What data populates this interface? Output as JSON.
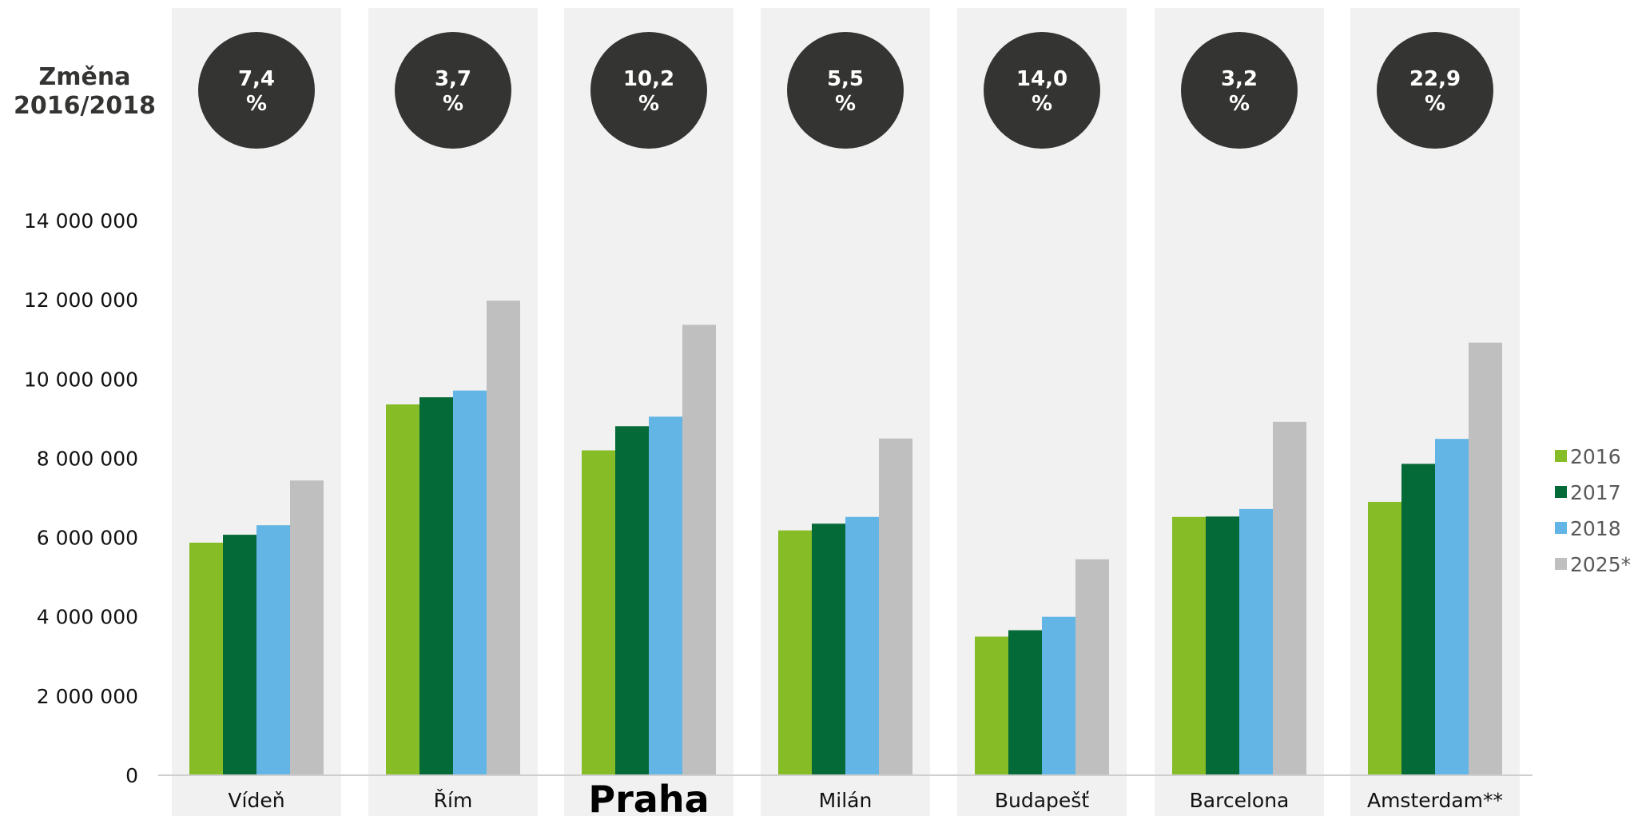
{
  "chart_data": {
    "type": "bar",
    "side_title": [
      "Změna",
      "2016/2018"
    ],
    "categories": [
      "Vídeň",
      "Řím",
      "Praha",
      "Milán",
      "Budapešť",
      "Barcelona",
      "Amsterdam**"
    ],
    "highlight_category": "Praha",
    "change_labels": [
      [
        "7,4",
        "%"
      ],
      [
        "3,7",
        "%"
      ],
      [
        "10,2",
        "%"
      ],
      [
        "5,5",
        "%"
      ],
      [
        "14,0",
        "%"
      ],
      [
        "3,2",
        "%"
      ],
      [
        "22,9",
        "%"
      ]
    ],
    "series": [
      {
        "name": "2016",
        "color": "#86bc25",
        "values": [
          5870000,
          9360000,
          8200000,
          6180000,
          3500000,
          6520000,
          6900000
        ]
      },
      {
        "name": "2017",
        "color": "#046a38",
        "values": [
          6070000,
          9540000,
          8810000,
          6350000,
          3660000,
          6530000,
          7860000
        ]
      },
      {
        "name": "2018",
        "color": "#62b5e5",
        "values": [
          6310000,
          9710000,
          9050000,
          6520000,
          4000000,
          6720000,
          8490000
        ]
      },
      {
        "name": "2025*",
        "color": "#bfbfbf",
        "values": [
          7440000,
          11980000,
          11370000,
          8500000,
          5450000,
          8920000,
          10920000
        ]
      }
    ],
    "ylim": [
      0,
      14000000
    ],
    "yticks": [
      0,
      2000000,
      4000000,
      6000000,
      8000000,
      10000000,
      12000000,
      14000000
    ],
    "ytick_labels": [
      "0",
      "2 000 000",
      "4 000 000",
      "6 000 000",
      "8 000 000",
      "10 000 000",
      "12 000 000",
      "14 000 000"
    ],
    "legend_position": "right",
    "grid": false
  }
}
